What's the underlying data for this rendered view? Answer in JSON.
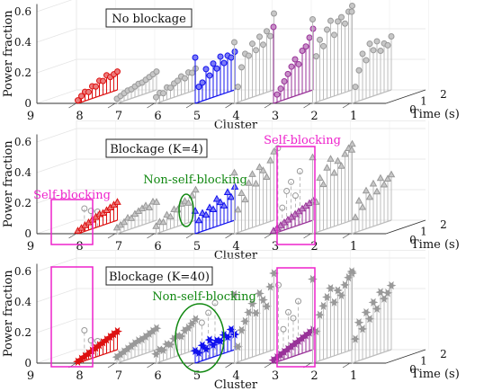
{
  "chart_data": [
    {
      "type": "stem-3d",
      "legend_box": "No blockage",
      "ylabel": "Power fraction",
      "xlabel": "Cluster",
      "zlabel": "Time (s)",
      "ylim": [
        0,
        0.65
      ],
      "y_ticks": [
        "0",
        "0.2",
        "0.4",
        "0.6"
      ],
      "x_ticks": [
        "9",
        "8",
        "7",
        "6",
        "5",
        "4",
        "3",
        "2",
        "1"
      ],
      "z_ticks": [
        "0",
        "1",
        "2"
      ],
      "series": [
        {
          "cluster": 8,
          "marker": "circle",
          "color": "#dd1111",
          "values": [
            0.02,
            0.04,
            0.06,
            0.05,
            0.08,
            0.07,
            0.1,
            0.09,
            0.12,
            0.1,
            0.11,
            0.12
          ]
        },
        {
          "cluster": 7,
          "marker": "circle",
          "color": "#999999",
          "values": [
            0.03,
            0.04,
            0.05,
            0.06,
            0.06,
            0.07,
            0.08,
            0.08,
            0.09,
            0.1,
            0.11,
            0.12
          ]
        },
        {
          "cluster": 6,
          "marker": "circle",
          "color": "#999999",
          "values": [
            0.04,
            0.06,
            0.05,
            0.08,
            0.07,
            0.09,
            0.1,
            0.12,
            0.1,
            0.13,
            0.12,
            0.14
          ]
        },
        {
          "cluster": 5,
          "marker": "circle",
          "color": "#1111ee",
          "values": [
            0.3,
            0.1,
            0.12,
            0.2,
            0.15,
            0.22,
            0.18,
            0.25,
            0.2,
            0.24,
            0.22,
            0.25
          ]
        },
        {
          "cluster": 4,
          "marker": "circle",
          "color": "#999999",
          "values": [
            0.4,
            0.1,
            0.22,
            0.3,
            0.28,
            0.35,
            0.3,
            0.38,
            0.32,
            0.4,
            0.36,
            0.5
          ]
        },
        {
          "cluster": 3,
          "marker": "circle",
          "color": "#993399",
          "values": [
            0.5,
            0.05,
            0.08,
            0.12,
            0.16,
            0.2,
            0.24,
            0.2,
            0.28,
            0.3,
            0.35,
            0.4
          ]
        },
        {
          "cluster": 2,
          "marker": "circle",
          "color": "#999999",
          "values": [
            0.55,
            0.3,
            0.4,
            0.35,
            0.45,
            0.5,
            0.4,
            0.48,
            0.5,
            0.45,
            0.52,
            0.55
          ]
        },
        {
          "cluster": 1,
          "marker": "circle",
          "color": "#999999",
          "values": [
            0.6,
            0.1,
            0.2,
            0.3,
            0.25,
            0.35,
            0.3,
            0.35,
            0.28,
            0.32,
            0.3,
            0.35
          ]
        }
      ],
      "annotations": []
    },
    {
      "type": "stem-3d",
      "legend_box": "Blockage (K=4)",
      "ylabel": "Power fraction",
      "xlabel": "Cluster",
      "zlabel": "Time (s)",
      "ylim": [
        0,
        0.65
      ],
      "y_ticks": [
        "0",
        "0.2",
        "0.4",
        "0.6"
      ],
      "x_ticks": [
        "9",
        "8",
        "7",
        "6",
        "5",
        "4",
        "3",
        "2",
        "1"
      ],
      "z_ticks": [
        "0",
        "1",
        "2"
      ],
      "series": [
        {
          "cluster": 8,
          "marker": "triangle",
          "color": "#dd1111",
          "values": [
            0.02,
            0.03,
            0.04,
            0.05,
            0.06,
            0.07,
            0.08,
            0.08,
            0.09,
            0.1,
            0.11,
            0.12
          ],
          "ghost": [
            0.15,
            0.12,
            0.1
          ]
        },
        {
          "cluster": 7,
          "marker": "triangle",
          "color": "#999999",
          "values": [
            0.04,
            0.05,
            0.06,
            0.08,
            0.07,
            0.09,
            0.1,
            0.11,
            0.12,
            0.1,
            0.13,
            0.12
          ]
        },
        {
          "cluster": 6,
          "marker": "triangle",
          "color": "#999999",
          "values": [
            0.05,
            0.07,
            0.06,
            0.1,
            0.08,
            0.12,
            0.11,
            0.14,
            0.15,
            0.13,
            0.17,
            0.2
          ]
        },
        {
          "cluster": 5,
          "marker": "triangle",
          "color": "#1111ee",
          "values": [
            0.15,
            0.08,
            0.12,
            0.1,
            0.14,
            0.12,
            0.18,
            0.15,
            0.12,
            0.2,
            0.16,
            0.22
          ]
        },
        {
          "cluster": 4,
          "marker": "triangle",
          "color": "#999999",
          "values": [
            0.4,
            0.15,
            0.25,
            0.2,
            0.3,
            0.35,
            0.28,
            0.38,
            0.35,
            0.3,
            0.4,
            0.45
          ]
        },
        {
          "cluster": 3,
          "marker": "triangle",
          "color": "#993399",
          "values": [
            0.02,
            0.03,
            0.04,
            0.05,
            0.06,
            0.07,
            0.08,
            0.09,
            0.1,
            0.11,
            0.12,
            0.13
          ],
          "ghost": [
            0.55,
            0.15,
            0.25,
            0.3,
            0.2,
            0.35
          ]
        },
        {
          "cluster": 2,
          "marker": "triangle",
          "color": "#999999",
          "values": [
            0.5,
            0.2,
            0.35,
            0.3,
            0.4,
            0.45,
            0.35,
            0.42,
            0.38,
            0.45,
            0.48,
            0.5
          ]
        },
        {
          "cluster": 1,
          "marker": "triangle",
          "color": "#999999",
          "values": [
            0.55,
            0.1,
            0.2,
            0.15,
            0.25,
            0.2,
            0.28,
            0.22,
            0.3,
            0.25,
            0.28,
            0.3
          ]
        }
      ],
      "annotations": [
        {
          "text": "Self-blocking",
          "color": "#ee22cc"
        },
        {
          "text": "Self-blocking",
          "color": "#ee22cc"
        },
        {
          "text": "Non-self-blocking",
          "color": "#118811"
        }
      ]
    },
    {
      "type": "stem-3d",
      "legend_box": "Blockage (K=40)",
      "ylabel": "Power fraction",
      "xlabel": "Cluster",
      "zlabel": "Time (s)",
      "ylim": [
        0,
        0.65
      ],
      "y_ticks": [
        "0",
        "0.2",
        "0.4",
        "0.6"
      ],
      "x_ticks": [
        "9",
        "8",
        "7",
        "6",
        "5",
        "4",
        "3",
        "2",
        "1"
      ],
      "z_ticks": [
        "0",
        "1",
        "2"
      ],
      "series": [
        {
          "cluster": 8,
          "marker": "star",
          "color": "#dd1111",
          "values": [
            0.01,
            0.02,
            0.03,
            0.04,
            0.05,
            0.06,
            0.07,
            0.08,
            0.09,
            0.1,
            0.11,
            0.12
          ],
          "ghost": [
            0.2,
            0.12,
            0.1
          ]
        },
        {
          "cluster": 7,
          "marker": "star",
          "color": "#999999",
          "values": [
            0.04,
            0.05,
            0.06,
            0.07,
            0.08,
            0.09,
            0.1,
            0.1,
            0.11,
            0.12,
            0.13,
            0.14
          ]
        },
        {
          "cluster": 6,
          "marker": "star",
          "color": "#999999",
          "values": [
            0.06,
            0.08,
            0.07,
            0.1,
            0.09,
            0.12,
            0.13,
            0.12,
            0.15,
            0.16,
            0.18,
            0.2
          ]
        },
        {
          "cluster": 5,
          "marker": "star",
          "color": "#1111ee",
          "values": [
            0.08,
            0.06,
            0.1,
            0.07,
            0.12,
            0.08,
            0.1,
            0.09,
            0.12,
            0.1,
            0.14,
            0.1
          ],
          "ghost": [
            0.25,
            0.3,
            0.35
          ]
        },
        {
          "cluster": 4,
          "marker": "star",
          "color": "#999999",
          "values": [
            0.45,
            0.1,
            0.2,
            0.25,
            0.3,
            0.35,
            0.28,
            0.4,
            0.35,
            0.3,
            0.42,
            0.5
          ]
        },
        {
          "cluster": 3,
          "marker": "star",
          "color": "#993399",
          "values": [
            0.02,
            0.03,
            0.04,
            0.05,
            0.06,
            0.07,
            0.08,
            0.09,
            0.1,
            0.11,
            0.12,
            0.13
          ],
          "ghost": [
            0.5,
            0.2,
            0.3,
            0.25,
            0.35
          ]
        },
        {
          "cluster": 2,
          "marker": "star",
          "color": "#999999",
          "values": [
            0.55,
            0.2,
            0.3,
            0.35,
            0.4,
            0.45,
            0.35,
            0.42,
            0.38,
            0.44,
            0.48,
            0.5
          ]
        },
        {
          "cluster": 1,
          "marker": "star",
          "color": "#999999",
          "values": [
            0.6,
            0.15,
            0.25,
            0.2,
            0.3,
            0.25,
            0.35,
            0.3,
            0.4,
            0.35,
            0.38,
            0.42
          ]
        }
      ],
      "annotations": [
        {
          "text": "Non-self-blocking",
          "color": "#118811"
        }
      ]
    }
  ]
}
